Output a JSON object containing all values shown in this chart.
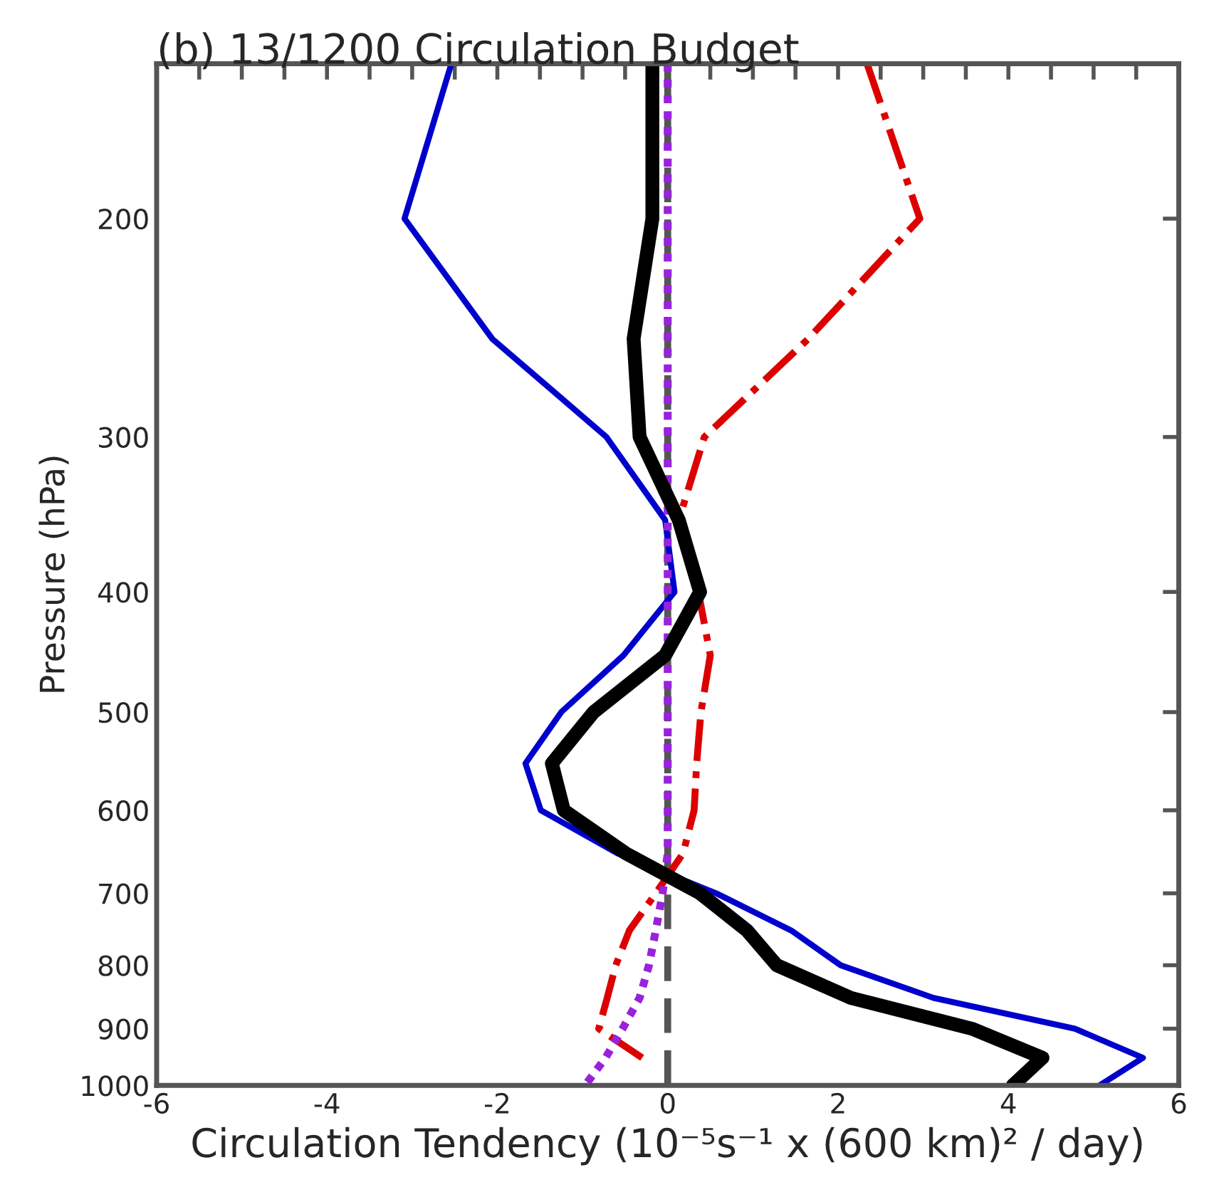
{
  "chart_data": {
    "type": "line",
    "title": "(b) 13/1200 Circulation Budget",
    "xlabel": "Circulation Tendency (10⁻⁵s⁻¹ x (600 km)² / day)",
    "ylabel": "Pressure (hPa)",
    "log": "y",
    "grid": false,
    "legend": false,
    "marker": "none",
    "xlim": [
      -6,
      6
    ],
    "ylim": [
      1000,
      150
    ],
    "xticks": [
      -6,
      {
        "value": -5.5,
        "label": null
      },
      {
        "value": -5,
        "label": null
      },
      {
        "value": -4.5,
        "label": null
      },
      -4,
      {
        "value": -3.5,
        "label": null
      },
      {
        "value": -3,
        "label": null
      },
      {
        "value": -2.5,
        "label": null
      },
      -2,
      {
        "value": -1.5,
        "label": null
      },
      {
        "value": -1,
        "label": null
      },
      {
        "value": -0.5,
        "label": null
      },
      0,
      {
        "value": 0.5,
        "label": null
      },
      {
        "value": 1,
        "label": null
      },
      {
        "value": 1.5,
        "label": null
      },
      2,
      {
        "value": 2.5,
        "label": null
      },
      {
        "value": 3,
        "label": null
      },
      {
        "value": 3.5,
        "label": null
      },
      4,
      {
        "value": 4.5,
        "label": null
      },
      {
        "value": 5,
        "label": null
      },
      {
        "value": 5.5,
        "label": null
      },
      6
    ],
    "yticks": [
      200,
      300,
      400,
      500,
      600,
      700,
      800,
      900,
      1000
    ],
    "series": [
      {
        "color": "#555555",
        "line_style": "dashed",
        "x": [
          0,
          0,
          0,
          0,
          0,
          0,
          0,
          0,
          0,
          0,
          0,
          0,
          0,
          0,
          0,
          0,
          0,
          0
        ],
        "values": [
          150,
          200,
          250,
          300,
          350,
          400,
          450,
          500,
          550,
          600,
          650,
          700,
          750,
          800,
          850,
          900,
          950,
          1000
        ]
      },
      {
        "color": "#0000cc",
        "line_style": "solid",
        "x": [
          -2.54,
          -3.09,
          -2.06,
          -0.72,
          -0.03,
          0.08,
          -0.52,
          -1.25,
          -1.67,
          -1.49,
          -0.59,
          0.57,
          1.45,
          2.03,
          3.12,
          4.78,
          5.58,
          5.07
        ],
        "values": [
          150,
          200,
          250,
          300,
          350,
          400,
          450,
          500,
          550,
          600,
          650,
          700,
          750,
          800,
          850,
          900,
          950,
          1000
        ]
      },
      {
        "color": "#dd0000",
        "line_style": "dashdot",
        "x": [
          2.34,
          2.96,
          1.65,
          0.43,
          0.13,
          0.36,
          0.5,
          0.39,
          0.34,
          0.31,
          0.18,
          -0.14,
          -0.45,
          -0.61,
          -0.71,
          -0.81,
          -0.3
        ],
        "values": [
          150,
          200,
          250,
          300,
          350,
          400,
          450,
          500,
          550,
          600,
          650,
          700,
          750,
          800,
          850,
          900,
          950
        ]
      },
      {
        "color": "#9922dd",
        "line_style": "dotted",
        "x": [
          0,
          0,
          0,
          0,
          0,
          0,
          0,
          0,
          0,
          0,
          0,
          -0.06,
          -0.14,
          -0.22,
          -0.33,
          -0.53,
          -0.73,
          -0.97
        ],
        "values": [
          150,
          200,
          250,
          300,
          350,
          400,
          450,
          500,
          550,
          600,
          650,
          700,
          750,
          800,
          850,
          900,
          950,
          1000
        ]
      },
      {
        "color": "#000000",
        "line_style": "solid",
        "x": [
          -0.18,
          -0.18,
          -0.4,
          -0.33,
          0.13,
          0.38,
          -0.03,
          -0.87,
          -1.36,
          -1.22,
          -0.49,
          0.38,
          0.93,
          1.28,
          2.15,
          3.57,
          4.4,
          4.05
        ],
        "values": [
          150,
          200,
          250,
          300,
          350,
          400,
          450,
          500,
          550,
          600,
          650,
          700,
          750,
          800,
          850,
          900,
          950,
          1000
        ]
      }
    ]
  }
}
